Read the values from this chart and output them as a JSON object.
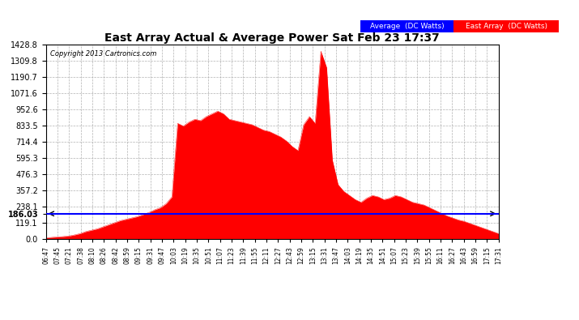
{
  "title": "East Array Actual & Average Power Sat Feb 23 17:37",
  "copyright": "Copyright 2013 Cartronics.com",
  "legend_avg": "Average  (DC Watts)",
  "legend_east": "East Array  (DC Watts)",
  "avg_value": 186.03,
  "ymax": 1428.8,
  "ymin": 0.0,
  "yticks": [
    0.0,
    119.1,
    238.1,
    357.2,
    476.3,
    595.3,
    714.4,
    833.5,
    952.6,
    1071.6,
    1190.7,
    1309.8,
    1428.8
  ],
  "plot_bg": "#ffffff",
  "area_color": "#ff0000",
  "avg_line_color": "#0000ff",
  "grid_color": "#aaaaaa",
  "title_color": "#000000",
  "xtick_labels": [
    "06:47",
    "07:45",
    "07:21",
    "07:38",
    "08:10",
    "08:26",
    "08:42",
    "08:59",
    "09:15",
    "09:31",
    "09:47",
    "10:03",
    "10:19",
    "10:35",
    "10:51",
    "11:07",
    "11:23",
    "11:39",
    "11:55",
    "12:11",
    "12:27",
    "12:43",
    "12:59",
    "13:15",
    "13:31",
    "13:47",
    "14:03",
    "14:19",
    "14:35",
    "14:51",
    "15:07",
    "15:23",
    "15:39",
    "15:55",
    "16:11",
    "16:27",
    "16:43",
    "16:59",
    "17:15",
    "17:31"
  ],
  "power_values": [
    8,
    12,
    15,
    18,
    22,
    30,
    40,
    55,
    65,
    75,
    90,
    105,
    120,
    135,
    145,
    155,
    165,
    180,
    195,
    215,
    230,
    260,
    310,
    850,
    830,
    860,
    880,
    870,
    900,
    920,
    940,
    920,
    880,
    870,
    860,
    850,
    840,
    820,
    800,
    790,
    770,
    750,
    720,
    680,
    650,
    840,
    900,
    850,
    1380,
    1260,
    580,
    400,
    350,
    320,
    290,
    270,
    300,
    320,
    310,
    290,
    300,
    320,
    310,
    290,
    270,
    260,
    250,
    230,
    210,
    190,
    170,
    155,
    140,
    130,
    115,
    100,
    85,
    70,
    55,
    40
  ],
  "n_points": 80
}
